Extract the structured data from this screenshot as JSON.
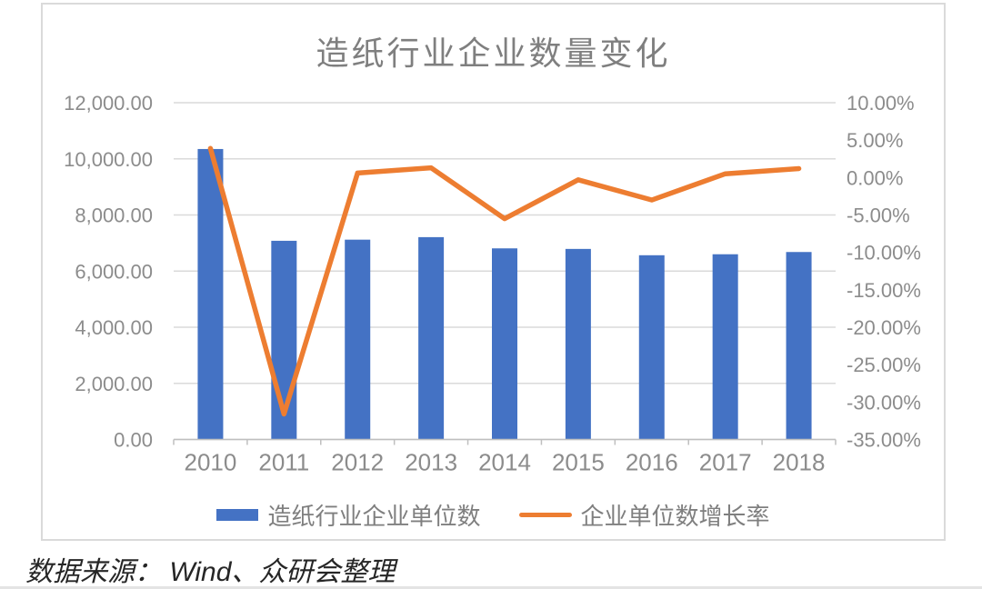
{
  "footer": {
    "source_text": "数据来源： Wind、众研会整理"
  },
  "chart_data": {
    "type": "bar",
    "subtype": "bar-and-line-dual-axis",
    "title": "造纸行业企业数量变化",
    "categories": [
      "2010",
      "2011",
      "2012",
      "2013",
      "2014",
      "2015",
      "2016",
      "2017",
      "2018"
    ],
    "series": [
      {
        "name": "造纸行业企业单位数",
        "type": "bar",
        "axis": "left",
        "color": "#4472C4",
        "values": [
          10350,
          7080,
          7120,
          7210,
          6810,
          6790,
          6565,
          6600,
          6680
        ]
      },
      {
        "name": "企业单位数增长率",
        "type": "line",
        "axis": "right",
        "color": "#ED7D31",
        "values_pct": [
          3.9,
          -31.6,
          0.6,
          1.3,
          -5.5,
          -0.3,
          -3.0,
          0.5,
          1.2
        ]
      }
    ],
    "left_axis": {
      "min": 0,
      "max": 12000,
      "step": 2000,
      "labels": [
        "12,000.00",
        "10,000.00",
        "8,000.00",
        "6,000.00",
        "4,000.00",
        "2,000.00",
        "0.00"
      ]
    },
    "right_axis": {
      "min": -35,
      "max": 10,
      "step": 5,
      "labels": [
        "10.00%",
        "5.00%",
        "0.00%",
        "-5.00%",
        "-10.00%",
        "-15.00%",
        "-20.00%",
        "-25.00%",
        "-30.00%",
        "-35.00%"
      ]
    },
    "grid": true,
    "legend_position": "bottom",
    "colors": {
      "gridline": "#DADADA",
      "axis_line": "#BFBFBF",
      "axis_text": "#8C8C8C",
      "title_text": "#7F7F7F",
      "footer_text": "#262626",
      "card_border": "#DADADA"
    }
  }
}
